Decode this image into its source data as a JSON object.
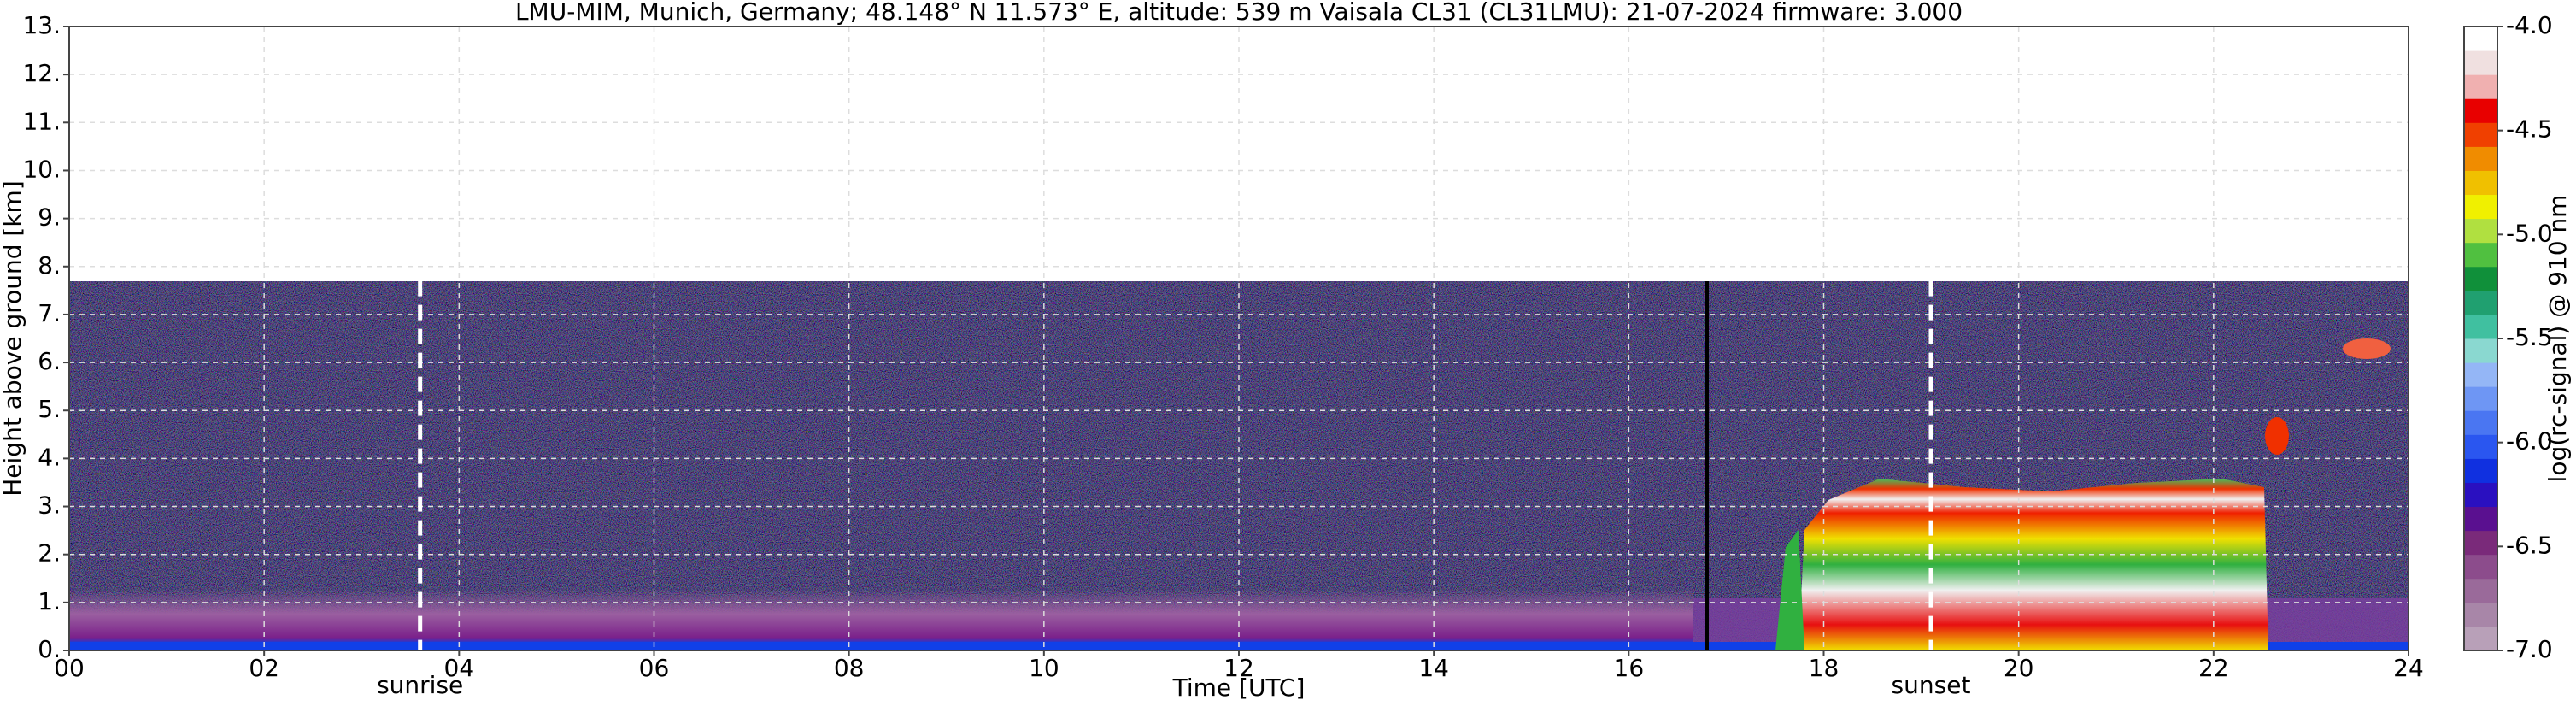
{
  "chart_data": {
    "type": "heatmap",
    "title": "LMU-MIM, Munich, Germany; 48.148° N 11.573° E, altitude: 539 m    Vaisala CL31 (CL31LMU): 21-07-2024    firmware: 3.000",
    "xlabel": "Time [UTC]",
    "ylabel": "Height above ground [km]",
    "xlim": [
      0,
      24
    ],
    "xticks": [
      {
        "value": 0,
        "label": "00"
      },
      {
        "value": 2,
        "label": "02"
      },
      {
        "value": 4,
        "label": "04"
      },
      {
        "value": 6,
        "label": "06"
      },
      {
        "value": 8,
        "label": "08"
      },
      {
        "value": 10,
        "label": "10"
      },
      {
        "value": 12,
        "label": "12"
      },
      {
        "value": 14,
        "label": "14"
      },
      {
        "value": 16,
        "label": "16"
      },
      {
        "value": 18,
        "label": "18"
      },
      {
        "value": 20,
        "label": "20"
      },
      {
        "value": 22,
        "label": "22"
      },
      {
        "value": 24,
        "label": "24"
      }
    ],
    "ylim": [
      0,
      13
    ],
    "yticks": [
      {
        "value": 0,
        "label": "0."
      },
      {
        "value": 1,
        "label": "1."
      },
      {
        "value": 2,
        "label": "2."
      },
      {
        "value": 3,
        "label": "3."
      },
      {
        "value": 4,
        "label": "4."
      },
      {
        "value": 5,
        "label": "5."
      },
      {
        "value": 6,
        "label": "6."
      },
      {
        "value": 7,
        "label": "7."
      },
      {
        "value": 8,
        "label": "8."
      },
      {
        "value": 9,
        "label": "9."
      },
      {
        "value": 10,
        "label": "10."
      },
      {
        "value": 11,
        "label": "11."
      },
      {
        "value": 12,
        "label": "12."
      },
      {
        "value": 13,
        "label": "13."
      }
    ],
    "grid": true,
    "annotations": [
      {
        "text": "sunrise",
        "x": 3.6
      },
      {
        "text": "sunset",
        "x": 19.1
      }
    ],
    "colorbar": {
      "label": "log(rc-signal) @ 910 nm",
      "lim": [
        -7,
        -4
      ],
      "ticks": [
        {
          "value": -7,
          "label": "-7.0"
        },
        {
          "value": -6.5,
          "label": "-6.5"
        },
        {
          "value": -6,
          "label": "-6.0"
        },
        {
          "value": -5.5,
          "label": "-5.5"
        },
        {
          "value": -5,
          "label": "-5.0"
        },
        {
          "value": -4.5,
          "label": "-4.5"
        },
        {
          "value": -4,
          "label": "-4.0"
        }
      ],
      "colors": [
        "#b8a0b8",
        "#a886a8",
        "#9a6a9a",
        "#8c4c8c",
        "#7a2a7a",
        "#5a1090",
        "#2a10c0",
        "#1030e0",
        "#2a56f0",
        "#4a76f2",
        "#6e96f4",
        "#94b6f6",
        "#8ad8d0",
        "#40c0a0",
        "#20a070",
        "#10903a",
        "#50c040",
        "#b0e040",
        "#f0f000",
        "#f0c000",
        "#f08c00",
        "#f04000",
        "#e80000",
        "#f0b0b0",
        "#f0e0e0",
        "#ffffff"
      ]
    }
  }
}
